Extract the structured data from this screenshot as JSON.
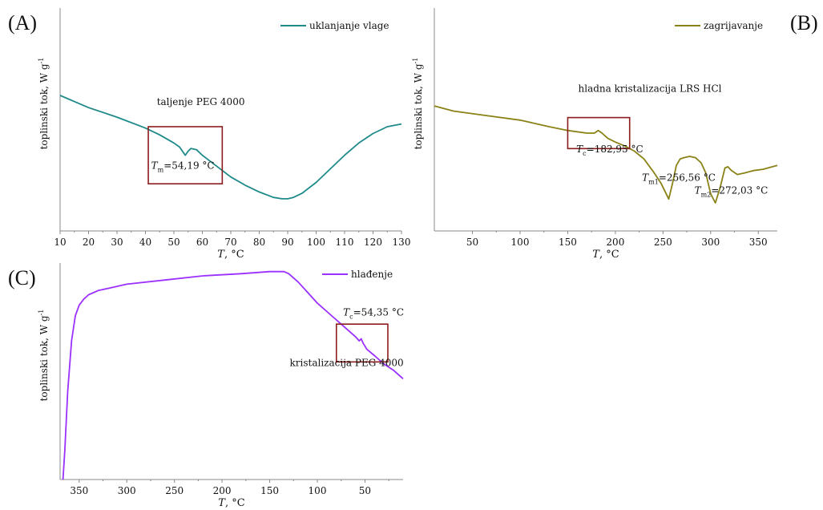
{
  "panels": {
    "a": {
      "label": "(A)"
    },
    "b": {
      "label": "(B)"
    },
    "c": {
      "label": "(C)"
    }
  },
  "colors": {
    "series_a": "#1f8a8a",
    "series_b": "#8a8216",
    "series_c": "#9b30ff",
    "highlight_box": "#8b1c1c",
    "axis": "#888888"
  },
  "chart_data": [
    {
      "type": "line",
      "panel": "A",
      "xlabel_var": "T",
      "xlabel_unit": ", °C",
      "ylabel": "toplinski tok, W g",
      "ylabel_sup": "-1",
      "xlim": [
        10,
        130
      ],
      "xticks": [
        10,
        20,
        30,
        40,
        50,
        60,
        70,
        80,
        90,
        100,
        110,
        120,
        130
      ],
      "ylim": [
        0,
        1
      ],
      "yticks": [],
      "legend": "uklanjanje vlage",
      "legend_position": "top-right",
      "series": [
        {
          "name": "uklanjanje vlage",
          "x": [
            10,
            20,
            30,
            40,
            45,
            50,
            52,
            54,
            55,
            56,
            58,
            60,
            65,
            70,
            75,
            80,
            85,
            88,
            90,
            92,
            95,
            100,
            105,
            110,
            115,
            120,
            125,
            130
          ],
          "y": [
            0.8,
            0.71,
            0.64,
            0.56,
            0.51,
            0.45,
            0.42,
            0.36,
            0.39,
            0.41,
            0.4,
            0.36,
            0.28,
            0.2,
            0.14,
            0.09,
            0.05,
            0.04,
            0.04,
            0.05,
            0.08,
            0.16,
            0.26,
            0.36,
            0.45,
            0.52,
            0.57,
            0.59
          ]
        }
      ],
      "annotations": [
        {
          "text": "taljenje PEG 4000",
          "x": 44,
          "y": 0.73
        },
        {
          "var": "T",
          "sub": "m",
          "value": "=54,19 °C",
          "x": 42,
          "y": 0.26
        }
      ],
      "highlight_box": {
        "x": [
          41,
          67
        ],
        "y": [
          0.15,
          0.57
        ]
      }
    },
    {
      "type": "line",
      "panel": "B",
      "xlabel_var": "T",
      "xlabel_unit": ", °C",
      "ylabel": "toplinski tok, W g",
      "ylabel_sup": "-1",
      "xlim": [
        10,
        370
      ],
      "xticks": [
        50,
        100,
        150,
        200,
        250,
        300,
        350
      ],
      "ylim": [
        0,
        1
      ],
      "yticks": [],
      "legend": "zagrijavanje",
      "legend_position": "top-right",
      "series": [
        {
          "name": "zagrijavanje",
          "x": [
            10,
            30,
            60,
            100,
            130,
            150,
            170,
            178,
            182,
            186,
            192,
            200,
            210,
            220,
            230,
            240,
            248,
            256,
            260,
            264,
            268,
            272,
            278,
            284,
            290,
            295,
            300,
            305,
            310,
            315,
            318,
            322,
            328,
            335,
            345,
            355,
            360,
            370
          ],
          "y": [
            0.76,
            0.72,
            0.69,
            0.65,
            0.6,
            0.57,
            0.55,
            0.55,
            0.57,
            0.55,
            0.51,
            0.48,
            0.45,
            0.41,
            0.35,
            0.25,
            0.16,
            0.04,
            0.16,
            0.3,
            0.35,
            0.36,
            0.37,
            0.36,
            0.32,
            0.24,
            0.08,
            0.01,
            0.13,
            0.28,
            0.29,
            0.26,
            0.23,
            0.24,
            0.26,
            0.27,
            0.28,
            0.3
          ]
        }
      ],
      "annotations": [
        {
          "text": "hladna kristalizacija LRS HCl",
          "x": 161,
          "y": 0.87
        },
        {
          "var": "T",
          "sub": "c",
          "value": "=182,95 °C",
          "x": 159,
          "y": 0.4
        },
        {
          "var": "T",
          "sub": "m1",
          "value": "=256,56 °C",
          "x": 228,
          "y": 0.18
        },
        {
          "var": "T",
          "sub": "m2",
          "value": "=272,03 °C",
          "x": 283,
          "y": 0.08
        }
      ],
      "highlight_box": {
        "x": [
          150,
          215
        ],
        "y": [
          0.43,
          0.67
        ]
      }
    },
    {
      "type": "line",
      "panel": "C",
      "xlabel_var": "T",
      "xlabel_unit": ", °C",
      "ylabel": "toplinski tok, W g",
      "ylabel_sup": "-1",
      "xlim": [
        370,
        10
      ],
      "xticks": [
        350,
        300,
        250,
        200,
        150,
        100,
        50
      ],
      "ylim": [
        0,
        1
      ],
      "yticks": [],
      "legend": "hlađenje",
      "legend_position": "top-right",
      "series": [
        {
          "name": "hlađenje",
          "x": [
            367,
            365,
            362,
            358,
            354,
            350,
            345,
            340,
            330,
            320,
            300,
            260,
            220,
            180,
            150,
            140,
            135,
            130,
            120,
            110,
            100,
            90,
            80,
            70,
            60,
            56,
            54,
            52,
            48,
            40,
            30,
            20,
            10
          ],
          "y": [
            0.0,
            0.14,
            0.42,
            0.66,
            0.78,
            0.83,
            0.86,
            0.88,
            0.9,
            0.91,
            0.93,
            0.95,
            0.97,
            0.98,
            0.99,
            0.99,
            0.99,
            0.98,
            0.94,
            0.89,
            0.84,
            0.8,
            0.76,
            0.72,
            0.68,
            0.66,
            0.67,
            0.65,
            0.62,
            0.59,
            0.55,
            0.52,
            0.48
          ]
        }
      ],
      "annotations": [
        {
          "var": "T",
          "sub": "c",
          "value": "=54,35 °C",
          "x": 73,
          "y": 0.78
        },
        {
          "text": "kristalizacija PEG 4000",
          "x": 129,
          "y": 0.54
        }
      ],
      "highlight_box": {
        "x": [
          80,
          26
        ],
        "y": [
          0.56,
          0.74
        ]
      }
    }
  ]
}
